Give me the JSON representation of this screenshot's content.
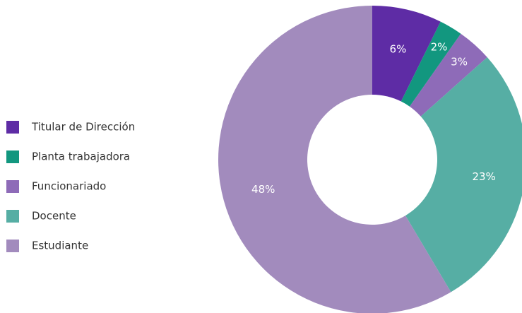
{
  "chart_data": {
    "type": "donut",
    "categories": [
      "Titular de Dirección",
      "Planta trabajadora",
      "Funcionariado",
      "Docente",
      "Estudiante"
    ],
    "values": [
      6,
      2,
      3,
      23,
      48
    ],
    "value_labels": [
      "6%",
      "2%",
      "3%",
      "23%",
      "48%"
    ],
    "colors": [
      "#5e2ca5",
      "#12977f",
      "#8e6bb8",
      "#56aea4",
      "#a28bbd"
    ],
    "legend": "left"
  }
}
